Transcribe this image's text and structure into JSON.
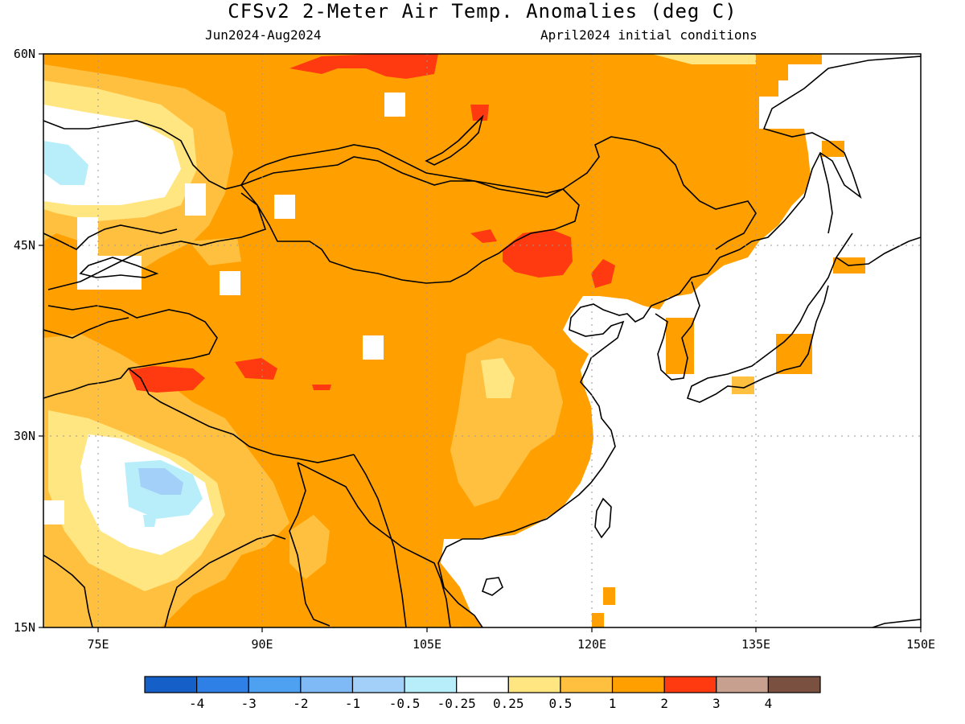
{
  "title": "CFSv2 2-Meter Air Temp. Anomalies (deg C)",
  "period": "Jun2024-Aug2024",
  "initial_conditions": "April2024 initial conditions",
  "map": {
    "lon_range": [
      68,
      150
    ],
    "lat_range": [
      15,
      60
    ],
    "lon_ticks": [
      "75E",
      "90E",
      "105E",
      "120E",
      "135E",
      "150E"
    ],
    "lat_ticks": [
      "60N",
      "45N",
      "30N",
      "15N"
    ],
    "ocean_color": "#ffffff",
    "coastline_color": "#000000"
  },
  "colorbar": {
    "colors": [
      "#1560c8",
      "#2f80e6",
      "#4ea0f0",
      "#7fbaf6",
      "#a3d0f8",
      "#b7eefa",
      "#ffffff",
      "#ffe680",
      "#ffc040",
      "#ffa000",
      "#ff3a10",
      "#c8a090",
      "#7a5040"
    ],
    "labels": [
      "-4",
      "-3",
      "-2",
      "-1",
      "-0.5",
      "-0.25",
      "0.25",
      "0.5",
      "1",
      "2",
      "3",
      "4"
    ]
  },
  "colors": {
    "anom_2_3": "#ffa000",
    "anom_3_plus": "#ff3a10",
    "anom_1_2": "#ffc040",
    "anom_05_1": "#ffe680",
    "anom_neg": "#b7eefa",
    "anom_neg_1": "#a3d0f8"
  }
}
